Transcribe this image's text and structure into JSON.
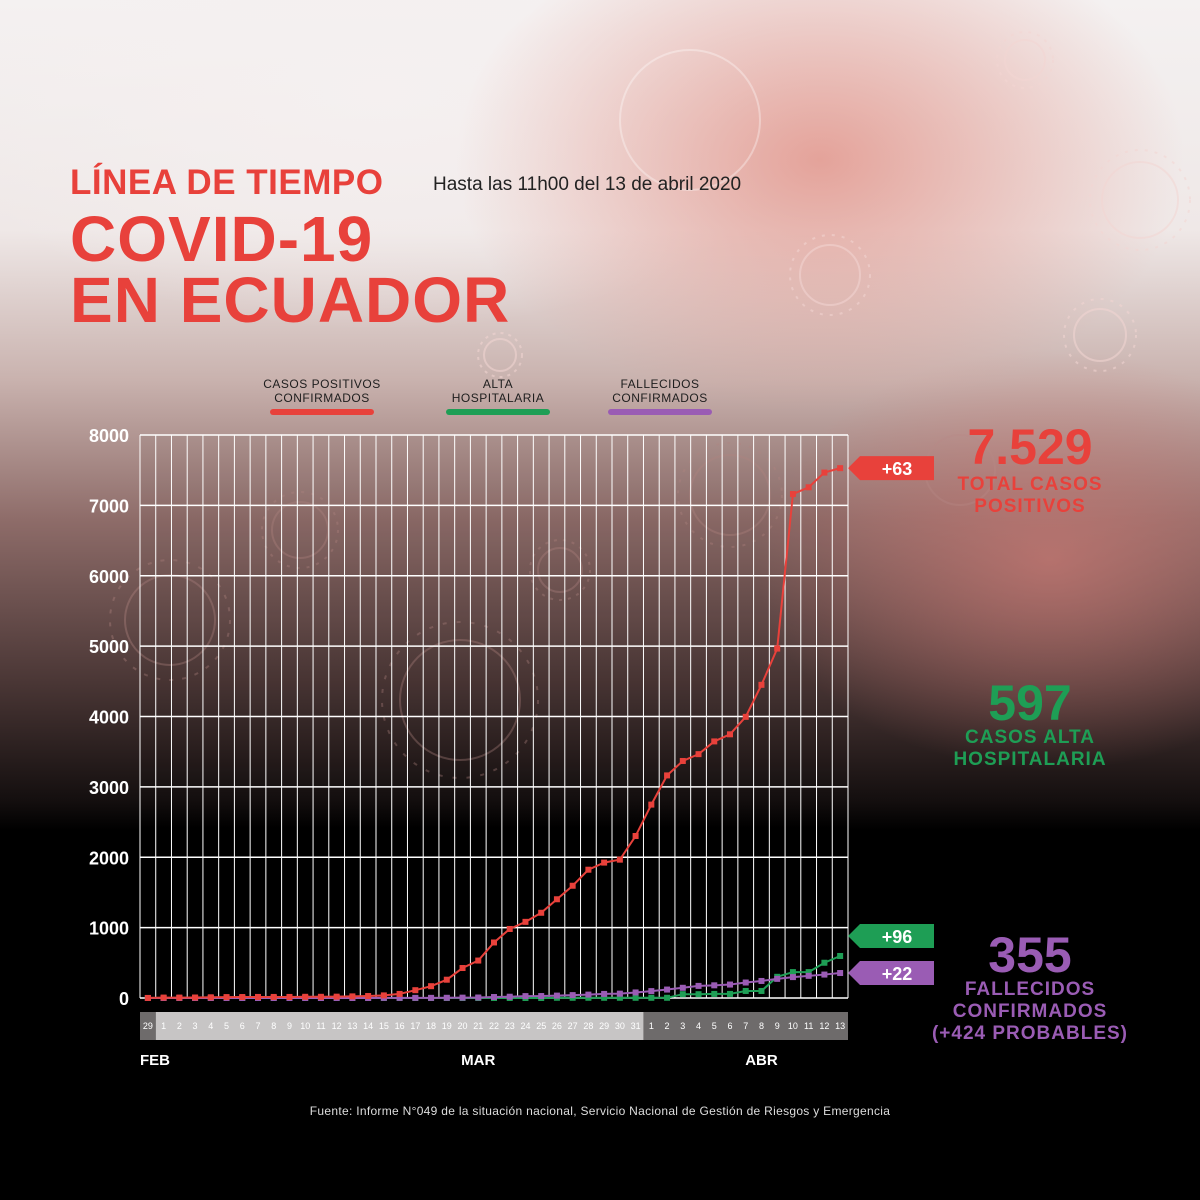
{
  "header": {
    "title_line1": "LÍNEA DE TIEMPO",
    "subtitle": "Hasta las 11h00 del 13 de abril 2020",
    "title_line2": "COVID-19",
    "title_line3": "EN ECUADOR"
  },
  "colors": {
    "red": "#e8413b",
    "green": "#1e9e55",
    "purple": "#9a5cb4",
    "title": "#e8413b"
  },
  "legend": [
    {
      "line1": "CASOS POSITIVOS",
      "line2": "CONFIRMADOS",
      "color": "#e8413b"
    },
    {
      "line1": "ALTA",
      "line2": "HOSPITALARIA",
      "color": "#1e9e55"
    },
    {
      "line1": "FALLECIDOS",
      "line2": "CONFIRMADOS",
      "color": "#9a5cb4"
    }
  ],
  "stats": {
    "positivos_value": "7.529",
    "positivos_label1": "TOTAL CASOS",
    "positivos_label2": "POSITIVOS",
    "alta_value": "597",
    "alta_label1": "CASOS ALTA",
    "alta_label2": "HOSPITALARIA",
    "fallecidos_value": "355",
    "fallecidos_label1": "FALLECIDOS",
    "fallecidos_label2": "CONFIRMADOS",
    "fallecidos_label3": "(+424 PROBABLES)"
  },
  "source": "Fuente: Informe N°049 de la situación nacional, Servicio Nacional de Gestión de Riesgos y Emergencia",
  "chart_data": {
    "type": "line",
    "ylim": [
      0,
      8000
    ],
    "y_ticks": [
      "0",
      "1000",
      "2000",
      "3000",
      "4000",
      "5000",
      "6000",
      "7000",
      "8000"
    ],
    "x": [
      "29",
      "1",
      "2",
      "3",
      "4",
      "5",
      "6",
      "7",
      "8",
      "9",
      "10",
      "11",
      "12",
      "13",
      "14",
      "15",
      "16",
      "17",
      "18",
      "19",
      "20",
      "21",
      "22",
      "23",
      "24",
      "25",
      "26",
      "27",
      "28",
      "29",
      "30",
      "31",
      "1",
      "2",
      "3",
      "4",
      "5",
      "6",
      "7",
      "8",
      "9",
      "10",
      "11",
      "12",
      "13"
    ],
    "month_labels": [
      {
        "label": "FEB",
        "index": 0
      },
      {
        "label": "MAR",
        "index": 21
      },
      {
        "label": "ABR",
        "index": 39
      }
    ],
    "month_bands": [
      {
        "start": 0,
        "end": 0,
        "shade": "dark"
      },
      {
        "start": 1,
        "end": 31,
        "shade": "light"
      },
      {
        "start": 32,
        "end": 44,
        "shade": "dark"
      }
    ],
    "series": [
      {
        "name": "CASOS POSITIVOS CONFIRMADOS",
        "color": "#e8413b",
        "values": [
          1,
          6,
          6,
          7,
          10,
          13,
          14,
          15,
          15,
          15,
          17,
          17,
          19,
          23,
          28,
          37,
          58,
          111,
          168,
          260,
          426,
          532,
          789,
          981,
          1082,
          1211,
          1403,
          1595,
          1823,
          1924,
          1966,
          2302,
          2748,
          3163,
          3368,
          3465,
          3646,
          3747,
          3995,
          4450,
          4965,
          7161,
          7257,
          7466,
          7529
        ],
        "badge": "+63"
      },
      {
        "name": "ALTA HOSPITALARIA",
        "color": "#1e9e55",
        "values": [
          0,
          0,
          0,
          0,
          0,
          0,
          0,
          0,
          0,
          0,
          0,
          0,
          0,
          0,
          0,
          0,
          0,
          0,
          0,
          0,
          0,
          0,
          0,
          0,
          0,
          0,
          3,
          3,
          3,
          3,
          3,
          3,
          3,
          3,
          54,
          54,
          58,
          58,
          100,
          100,
          301,
          368,
          368,
          501,
          597
        ],
        "badge": "+96"
      },
      {
        "name": "FALLECIDOS CONFIRMADOS",
        "color": "#9a5cb4",
        "values": [
          0,
          0,
          0,
          0,
          0,
          0,
          0,
          0,
          0,
          0,
          0,
          0,
          0,
          0,
          0,
          2,
          2,
          2,
          2,
          3,
          5,
          7,
          14,
          18,
          27,
          28,
          34,
          41,
          48,
          58,
          62,
          79,
          98,
          120,
          145,
          172,
          180,
          191,
          220,
          242,
          272,
          297,
          315,
          333,
          355
        ],
        "badge": "+22"
      }
    ]
  }
}
